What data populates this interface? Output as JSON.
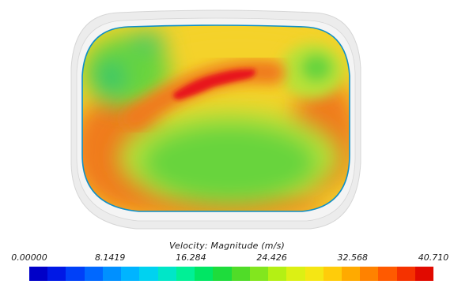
{
  "field": {
    "colors": {
      "housing": "#ececec",
      "housing_edge": "#d6d6d6",
      "boundary": "#0e8fc7",
      "hot": "#e8191a",
      "warm_orange": "#f07a1c",
      "warm_yellow": "#f4d22a",
      "mid_yellow_green": "#b8e238",
      "green": "#68d43c",
      "cool_green": "#2fc66a"
    }
  },
  "legend": {
    "title": "Velocity: Magnitude (m/s)",
    "ticks": [
      "0.00000",
      "8.1419",
      "16.284",
      "24.426",
      "32.568",
      "40.710"
    ],
    "min": 0.0,
    "max": 40.71,
    "colormap": [
      "#0000c8",
      "#0018e6",
      "#0040f8",
      "#0068ff",
      "#0090ff",
      "#00b4ff",
      "#00d2f0",
      "#00e6c8",
      "#00f096",
      "#00e664",
      "#1edc3c",
      "#50dc28",
      "#82e61e",
      "#b4f014",
      "#dcf014",
      "#f5e614",
      "#ffcc0a",
      "#ffaa00",
      "#ff8200",
      "#ff5a00",
      "#f53200",
      "#e10a00"
    ]
  }
}
